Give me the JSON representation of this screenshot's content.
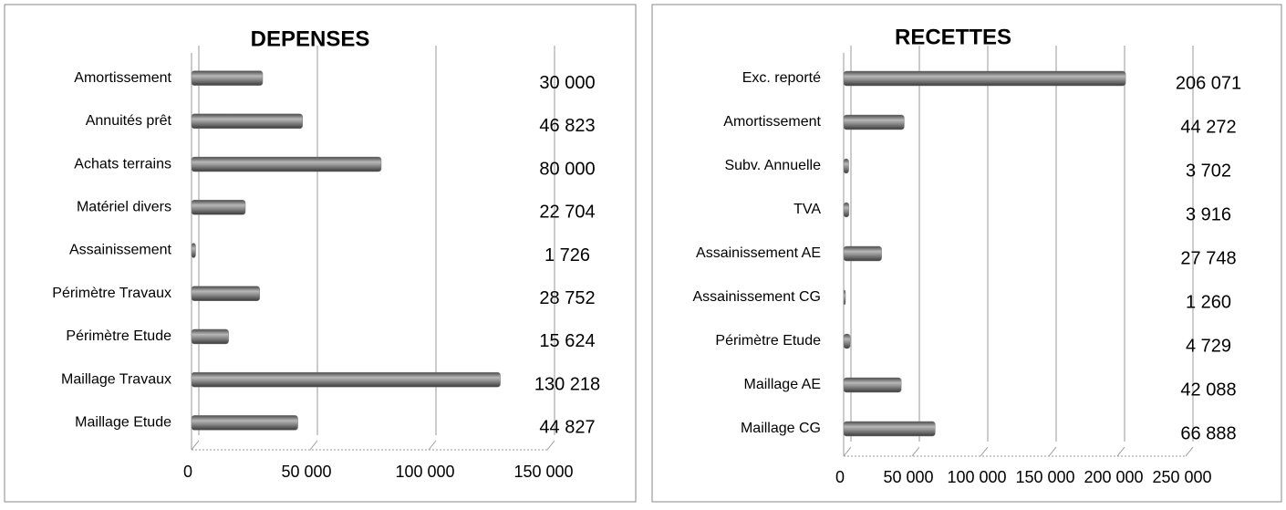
{
  "chart_data": [
    {
      "type": "bar",
      "orientation": "horizontal",
      "title": "DEPENSES",
      "categories": [
        "Amortissement",
        "Annuités prêt",
        "Achats terrains",
        "Matériel divers",
        "Assainissement",
        "Périmètre Travaux",
        "Périmètre Etude",
        "Maillage Travaux",
        "Maillage Etude"
      ],
      "values": [
        30000,
        46823,
        80000,
        22704,
        1726,
        28752,
        15624,
        130218,
        44827
      ],
      "value_labels": [
        "30 000",
        "46 823",
        "80 000",
        "22 704",
        "1 726",
        "28 752",
        "15 624",
        "130 218",
        "44 827"
      ],
      "color": "#808080",
      "xlim": [
        0,
        150000
      ],
      "xticks": [
        0,
        {
          "value": 50000,
          "label": "50 000"
        },
        {
          "value": 100000,
          "label": "100 000"
        },
        {
          "value": 150000,
          "label": "150 000"
        }
      ],
      "grid": true
    },
    {
      "type": "bar",
      "orientation": "horizontal",
      "title": "RECETTES",
      "categories": [
        "Exc. reporté",
        "Amortissement",
        "Subv. Annuelle",
        "TVA",
        "Assainissement AE",
        "Assainissement CG",
        "Périmètre Etude",
        "Maillage AE",
        "Maillage CG"
      ],
      "values": [
        206071,
        44272,
        3702,
        3916,
        27748,
        1260,
        4729,
        42088,
        66888
      ],
      "value_labels": [
        "206 071",
        "44 272",
        "3 702",
        "3 916",
        "27 748",
        "1 260",
        "4 729",
        "42 088",
        "66 888"
      ],
      "color": "#808080",
      "xlim": [
        0,
        250000
      ],
      "xticks": [
        0,
        {
          "value": 50000,
          "label": "50 000"
        },
        {
          "value": 100000,
          "label": "100 000"
        },
        {
          "value": 150000,
          "label": "150 000"
        },
        {
          "value": 200000,
          "label": "200 000"
        },
        {
          "value": 250000,
          "label": "250 000"
        }
      ],
      "grid": true
    }
  ]
}
